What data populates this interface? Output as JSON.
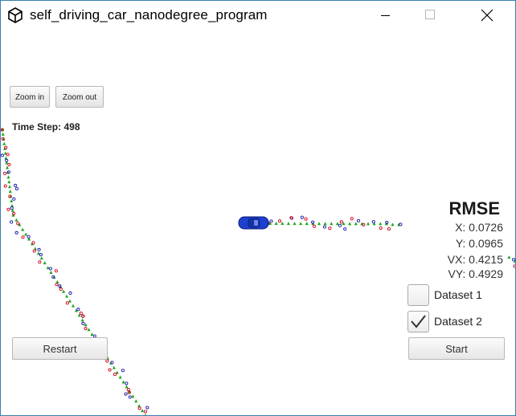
{
  "window": {
    "title": "self_driving_car_nanodegree_program",
    "icon": "unity-icon",
    "controls": [
      "minimize-icon",
      "maximize-icon",
      "close-icon"
    ]
  },
  "toolbar": {
    "zoom_in_label": "Zoom in",
    "zoom_out_label": "Zoom out"
  },
  "status": {
    "time_step_label": "Time Step:",
    "time_step_value": "498"
  },
  "rmse": {
    "title": "RMSE",
    "x": "X: 0.0726",
    "y": "Y: 0.0965",
    "vx": "VX: 0.4215",
    "vy": "VY: 0.4929"
  },
  "datasets": [
    {
      "label": "Dataset 1",
      "checked": false
    },
    {
      "label": "Dataset 2",
      "checked": true
    }
  ],
  "buttons": {
    "restart_label": "Restart",
    "start_label": "Start"
  },
  "colors": {
    "ground_truth": "#1aa61a",
    "lidar": "#d0021b",
    "radar": "#1a1ab0",
    "car": "#1f3fcf"
  }
}
